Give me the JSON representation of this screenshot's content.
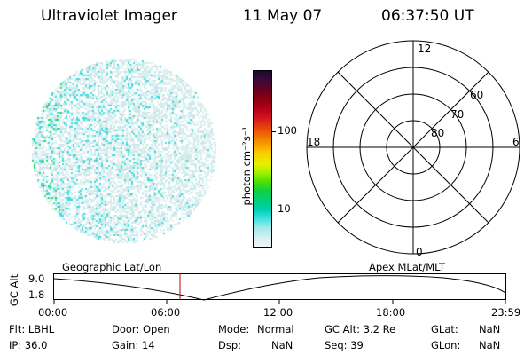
{
  "header": {
    "title": "Ultraviolet Imager",
    "date": "11 May 07",
    "time": "06:37:50 UT"
  },
  "colorbar": {
    "unit_label": "photon cm⁻²s⁻¹",
    "ticks": [
      "100",
      "10"
    ],
    "colors": [
      "#1a0a2e",
      "#3a0a3a",
      "#6a0020",
      "#8c0010",
      "#b00018",
      "#d01020",
      "#e84010",
      "#f07000",
      "#f8a000",
      "#f8d000",
      "#e8f000",
      "#a0f000",
      "#50e000",
      "#10d040",
      "#00d080",
      "#00d0b0",
      "#40e0e0",
      "#a0e8e8",
      "#d8f0f0",
      "#f0f6f6"
    ]
  },
  "polar_plot": {
    "mlt_labels": {
      "top": "12",
      "right": "6",
      "bottom": "0",
      "left": "18"
    },
    "lat_labels": [
      "80",
      "70",
      "60"
    ]
  },
  "timeline": {
    "y_axis_label": "GC Alt",
    "y_ticks": [
      "9.0",
      "1.8"
    ],
    "left_caption": "Geographic Lat/Lon",
    "right_caption": "Apex MLat/MLT",
    "x_ticks": [
      "00:00",
      "06:00",
      "12:00",
      "18:00",
      "23:59"
    ]
  },
  "info": {
    "flt": "Flt: LBHL",
    "ip": "IP: 36.0",
    "door": "Door: Open",
    "gain": "Gain: 14",
    "mode_label": "Mode:",
    "mode_value": "Normal",
    "dsp_label": "Dsp:",
    "dsp_value": "NaN",
    "gcalt": "GC Alt: 3.2 Re",
    "seq": "Seq: 39",
    "glat_label": "GLat:",
    "glat_value": "NaN",
    "glon_label": "GLon:",
    "glon_value": "NaN"
  }
}
